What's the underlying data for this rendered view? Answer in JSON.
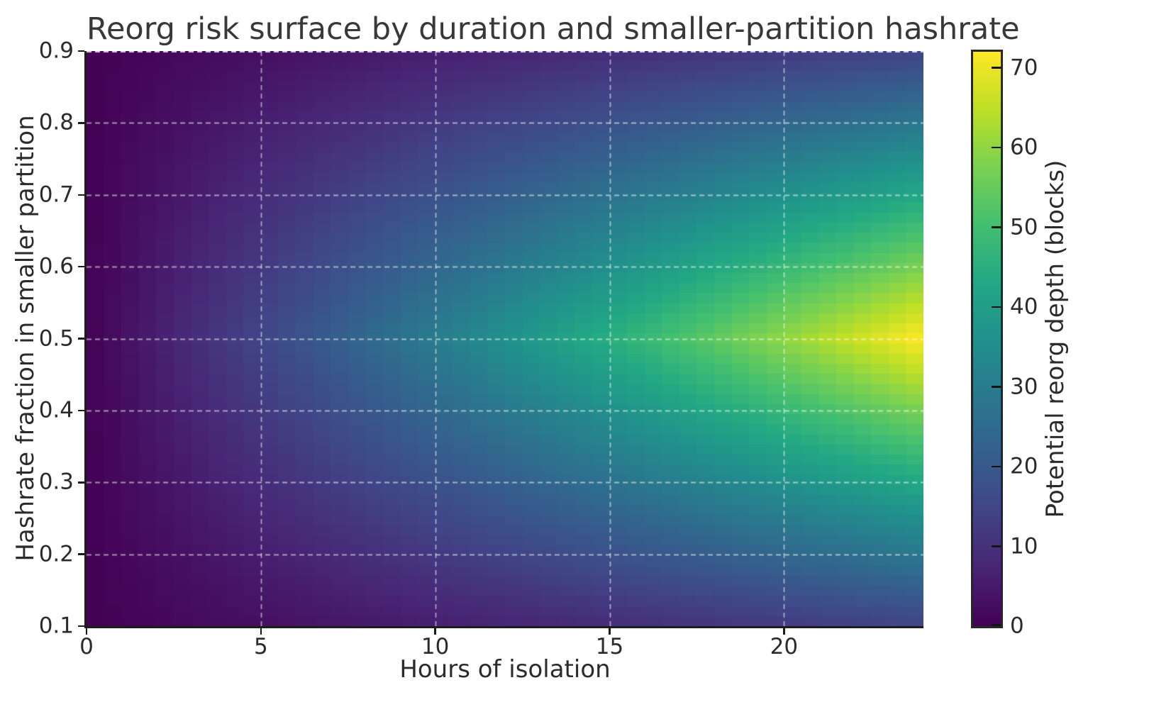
{
  "figure": {
    "background": "#ffffff",
    "text_color": "#2b2b2b",
    "spine_color": "#1c1c1c",
    "grid_color": "#ffffff",
    "grid_alpha": 0.55
  },
  "chart_data": {
    "type": "heatmap",
    "title": "Reorg risk surface by duration and smaller-partition hashrate",
    "xlabel": "Hours of isolation",
    "ylabel": "Hashrate fraction in smaller partition",
    "colorbar_label": "Potential reorg depth (blocks)",
    "xlim": [
      0,
      24
    ],
    "ylim": [
      0.1,
      0.9
    ],
    "zlim": [
      0,
      72
    ],
    "grid": {
      "show": true,
      "style": "dashed",
      "color": "#ffffff",
      "alpha": 0.55
    },
    "x_ticks": {
      "values": [
        0,
        5,
        10,
        15,
        20
      ],
      "labels": [
        "0",
        "5",
        "10",
        "15",
        "20"
      ]
    },
    "y_ticks": {
      "values": [
        0.1,
        0.2,
        0.3,
        0.4,
        0.5,
        0.6,
        0.7,
        0.8,
        0.9
      ],
      "labels": [
        "0.1",
        "0.2",
        "0.3",
        "0.4",
        "0.5",
        "0.6",
        "0.7",
        "0.8",
        "0.9"
      ]
    },
    "colorbar_ticks": {
      "values": [
        0,
        10,
        20,
        30,
        40,
        50,
        60,
        70
      ],
      "labels": [
        "0",
        "10",
        "20",
        "30",
        "40",
        "50",
        "60",
        "70"
      ]
    },
    "colormap": {
      "name": "viridis",
      "stops": [
        {
          "pos": 0.0,
          "color": "#440154"
        },
        {
          "pos": 0.1,
          "color": "#482475"
        },
        {
          "pos": 0.2,
          "color": "#414487"
        },
        {
          "pos": 0.3,
          "color": "#355f8d"
        },
        {
          "pos": 0.4,
          "color": "#2a788e"
        },
        {
          "pos": 0.5,
          "color": "#21918c"
        },
        {
          "pos": 0.6,
          "color": "#22a884"
        },
        {
          "pos": 0.7,
          "color": "#44bf70"
        },
        {
          "pos": 0.8,
          "color": "#7ad151"
        },
        {
          "pos": 0.9,
          "color": "#bddf26"
        },
        {
          "pos": 1.0,
          "color": "#fde725"
        }
      ]
    },
    "x": [
      0,
      1,
      2,
      3,
      4,
      5,
      6,
      7,
      8,
      9,
      10,
      11,
      12,
      13,
      14,
      15,
      16,
      17,
      18,
      19,
      20,
      21,
      22,
      23,
      24
    ],
    "y": [
      0.1,
      0.15,
      0.2,
      0.25,
      0.3,
      0.35,
      0.4,
      0.45,
      0.5,
      0.55,
      0.6,
      0.65,
      0.7,
      0.75,
      0.8,
      0.85,
      0.9
    ],
    "z": [
      [
        0,
        0.6,
        1.2,
        1.8,
        2.4,
        3,
        3.6,
        4.2,
        4.8,
        5.4,
        6,
        6.6,
        7.2,
        7.8,
        8.4,
        9,
        9.6,
        10.2,
        10.8,
        11.4,
        12,
        12.6,
        13.2,
        13.8,
        14.4
      ],
      [
        0,
        0.9,
        1.8,
        2.7,
        3.6,
        4.5,
        5.4,
        6.3,
        7.2,
        8.1,
        9,
        9.9,
        10.8,
        11.7,
        12.6,
        13.5,
        14.4,
        15.3,
        16.2,
        17.1,
        18,
        18.9,
        19.8,
        20.7,
        21.6
      ],
      [
        0,
        1.2,
        2.4,
        3.6,
        4.8,
        6,
        7.2,
        8.4,
        9.6,
        10.8,
        12,
        13.2,
        14.4,
        15.6,
        16.8,
        18,
        19.2,
        20.4,
        21.6,
        22.8,
        24,
        25.2,
        26.4,
        27.6,
        28.8
      ],
      [
        0,
        1.5,
        3,
        4.5,
        6,
        7.5,
        9,
        10.5,
        12,
        13.5,
        15,
        16.5,
        18,
        19.5,
        21,
        22.5,
        24,
        25.5,
        27,
        28.5,
        30,
        31.5,
        33,
        34.5,
        36
      ],
      [
        0,
        1.8,
        3.6,
        5.4,
        7.2,
        9,
        10.8,
        12.6,
        14.4,
        16.2,
        18,
        19.8,
        21.6,
        23.4,
        25.2,
        27,
        28.8,
        30.6,
        32.4,
        34.2,
        36,
        37.8,
        39.6,
        41.4,
        43.2
      ],
      [
        0,
        2.1,
        4.2,
        6.3,
        8.4,
        10.5,
        12.6,
        14.7,
        16.8,
        18.9,
        21,
        23.1,
        25.2,
        27.3,
        29.4,
        31.5,
        33.6,
        35.7,
        37.8,
        39.9,
        42,
        44.1,
        46.2,
        48.3,
        50.4
      ],
      [
        0,
        2.4,
        4.8,
        7.2,
        9.6,
        12,
        14.4,
        16.8,
        19.2,
        21.6,
        24,
        26.4,
        28.8,
        31.2,
        33.6,
        36,
        38.4,
        40.8,
        43.2,
        45.6,
        48,
        50.4,
        52.8,
        55.2,
        57.6
      ],
      [
        0,
        2.7,
        5.4,
        8.1,
        10.8,
        13.5,
        16.2,
        18.9,
        21.6,
        24.3,
        27,
        29.7,
        32.4,
        35.1,
        37.8,
        40.5,
        43.2,
        45.9,
        48.6,
        51.3,
        54,
        56.7,
        59.4,
        62.1,
        64.8
      ],
      [
        0,
        3,
        6,
        9,
        12,
        15,
        18,
        21,
        24,
        27,
        30,
        33,
        36,
        39,
        42,
        45,
        48,
        51,
        54,
        57,
        60,
        63,
        66,
        69,
        72
      ],
      [
        0,
        2.7,
        5.4,
        8.1,
        10.8,
        13.5,
        16.2,
        18.9,
        21.6,
        24.3,
        27,
        29.7,
        32.4,
        35.1,
        37.8,
        40.5,
        43.2,
        45.9,
        48.6,
        51.3,
        54,
        56.7,
        59.4,
        62.1,
        64.8
      ],
      [
        0,
        2.4,
        4.8,
        7.2,
        9.6,
        12,
        14.4,
        16.8,
        19.2,
        21.6,
        24,
        26.4,
        28.8,
        31.2,
        33.6,
        36,
        38.4,
        40.8,
        43.2,
        45.6,
        48,
        50.4,
        52.8,
        55.2,
        57.6
      ],
      [
        0,
        2.1,
        4.2,
        6.3,
        8.4,
        10.5,
        12.6,
        14.7,
        16.8,
        18.9,
        21,
        23.1,
        25.2,
        27.3,
        29.4,
        31.5,
        33.6,
        35.7,
        37.8,
        39.9,
        42,
        44.1,
        46.2,
        48.3,
        50.4
      ],
      [
        0,
        1.8,
        3.6,
        5.4,
        7.2,
        9,
        10.8,
        12.6,
        14.4,
        16.2,
        18,
        19.8,
        21.6,
        23.4,
        25.2,
        27,
        28.8,
        30.6,
        32.4,
        34.2,
        36,
        37.8,
        39.6,
        41.4,
        43.2
      ],
      [
        0,
        1.5,
        3,
        4.5,
        6,
        7.5,
        9,
        10.5,
        12,
        13.5,
        15,
        16.5,
        18,
        19.5,
        21,
        22.5,
        24,
        25.5,
        27,
        28.5,
        30,
        31.5,
        33,
        34.5,
        36
      ],
      [
        0,
        1.2,
        2.4,
        3.6,
        4.8,
        6,
        7.2,
        8.4,
        9.6,
        10.8,
        12,
        13.2,
        14.4,
        15.6,
        16.8,
        18,
        19.2,
        20.4,
        21.6,
        22.8,
        24,
        25.2,
        26.4,
        27.6,
        28.8
      ],
      [
        0,
        0.9,
        1.8,
        2.7,
        3.6,
        4.5,
        5.4,
        6.3,
        7.2,
        8.1,
        9,
        9.9,
        10.8,
        11.7,
        12.6,
        13.5,
        14.4,
        15.3,
        16.2,
        17.1,
        18,
        18.9,
        19.8,
        20.7,
        21.6
      ],
      [
        0,
        0.6,
        1.2,
        1.8,
        2.4,
        3,
        3.6,
        4.2,
        4.8,
        5.4,
        6,
        6.6,
        7.2,
        7.8,
        8.4,
        9,
        9.6,
        10.2,
        10.8,
        11.4,
        12,
        12.6,
        13.2,
        13.8,
        14.4
      ]
    ]
  }
}
